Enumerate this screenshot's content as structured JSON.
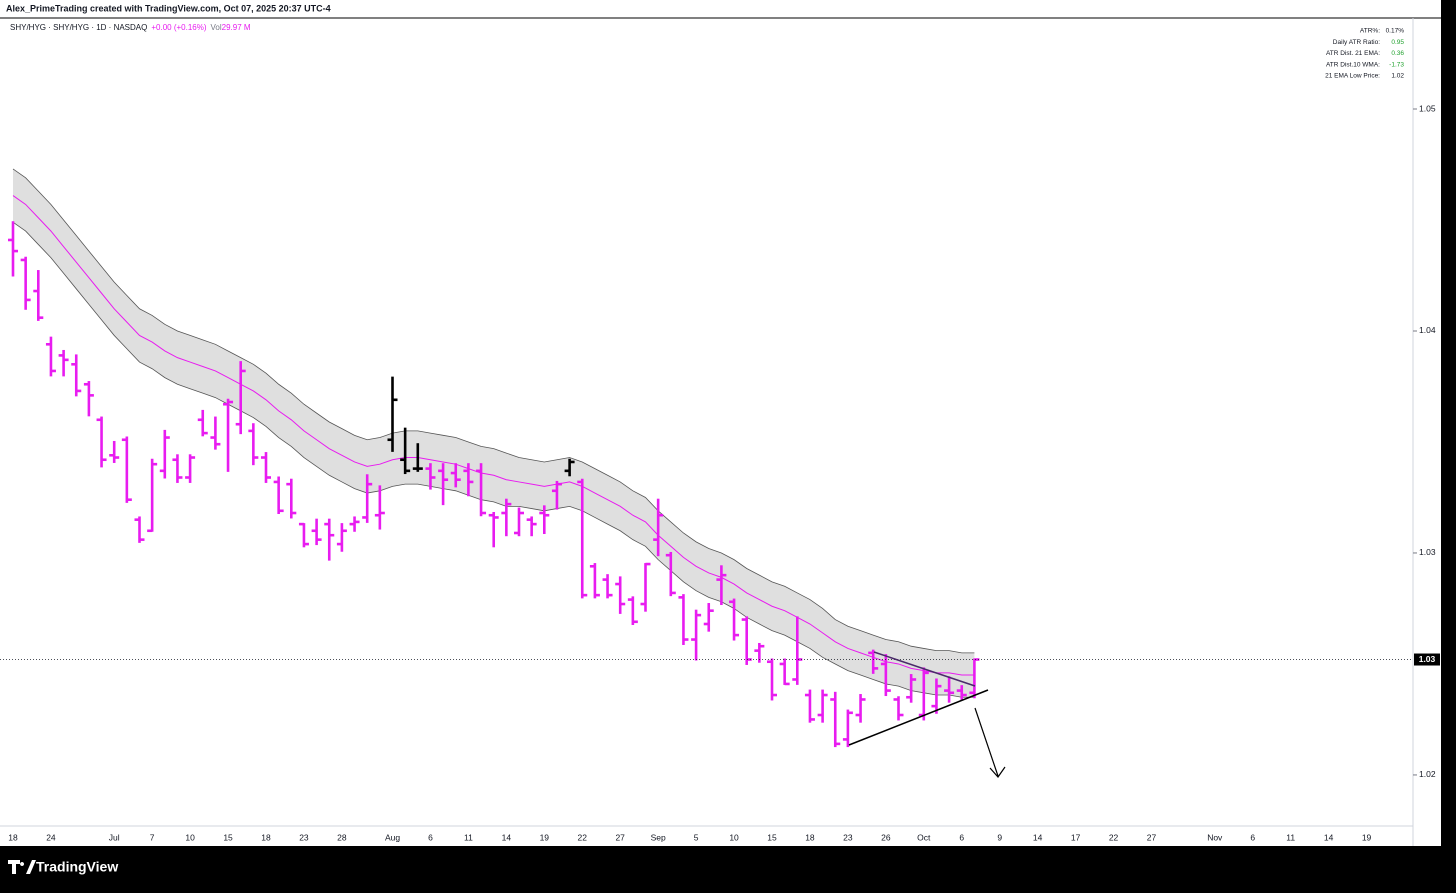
{
  "caption": "Alex_PrimeTrading created with TradingView.com, Oct 07, 2025 20:37 UTC-4",
  "legend": {
    "symbol": "SHY/HYG · SHY/HYG · 1D · NASDAQ",
    "change": "+0.00 (+0.16%)",
    "vol_label": "Vol",
    "vol_value": "29.97 M"
  },
  "stats_table": {
    "rows": [
      {
        "label": "ATR%:",
        "value": "0.17%",
        "color": "#131722"
      },
      {
        "label": "Daily ATR Ratio:",
        "value": "0.95",
        "color": "#22a12f"
      },
      {
        "label": "ATR Dist. 21 EMA:",
        "value": "0.36",
        "color": "#22a12f"
      },
      {
        "label": "ATR Dist.10 WMA:",
        "value": "-1.73",
        "color": "#22a12f"
      },
      {
        "label": "21 EMA Low Price:",
        "value": "1.02",
        "color": "#131722"
      }
    ]
  },
  "footer": {
    "brand": "TradingView"
  },
  "chart_data": {
    "type": "ohlc",
    "categories": [
      "18",
      null,
      null,
      "24",
      null,
      null,
      null,
      null,
      "Jul",
      null,
      null,
      "7",
      null,
      null,
      "10",
      null,
      null,
      "15",
      null,
      null,
      "18",
      null,
      null,
      "23",
      null,
      null,
      "28",
      null,
      null,
      null,
      "Aug",
      null,
      null,
      "6",
      null,
      null,
      "11",
      null,
      null,
      "14",
      null,
      null,
      "19",
      null,
      null,
      "22",
      null,
      null,
      "27",
      null,
      null,
      "Sep",
      null,
      null,
      "5",
      null,
      null,
      "10",
      null,
      null,
      "15",
      null,
      null,
      "18",
      null,
      null,
      "23",
      null,
      null,
      "26",
      null,
      null,
      "Oct",
      null,
      null,
      "6",
      null,
      null,
      "9",
      null,
      null,
      "14",
      null,
      null,
      "17",
      null,
      null,
      "22",
      null,
      null,
      "27",
      null,
      null,
      null,
      null,
      "Nov",
      null,
      null,
      "6",
      null,
      null,
      "11",
      null,
      null,
      "14",
      null,
      null,
      "19"
    ],
    "open": [
      1.0441,
      1.0432,
      1.0418,
      1.0394,
      1.0389,
      1.0385,
      1.0376,
      1.036,
      1.0344,
      1.0351,
      1.0315,
      1.031,
      1.0337,
      1.0342,
      1.0334,
      1.036,
      1.0352,
      1.0367,
      1.0358,
      1.0355,
      1.0343,
      1.0332,
      1.0331,
      1.0313,
      1.031,
      1.0313,
      1.0304,
      1.0313,
      1.0316,
      1.0317,
      1.0351,
      1.0342,
      1.0338,
      1.0338,
      1.0337,
      1.0336,
      1.0337,
      1.0337,
      1.0317,
      1.0318,
      1.0309,
      1.0315,
      1.0318,
      1.0328,
      1.0337,
      1.0332,
      1.0294,
      1.0288,
      1.0286,
      1.0279,
      1.0277,
      1.0306,
      1.0299,
      1.028,
      1.0261,
      1.0268,
      1.0288,
      1.0278,
      1.027,
      1.0256,
      1.0251,
      1.025,
      1.0243,
      1.0236,
      1.0227,
      1.0234,
      1.0216,
      1.0227,
      1.0255,
      1.025,
      1.0234,
      1.0235,
      1.0227,
      1.0231,
      1.0238,
      1.0238,
      1.0237,
      null,
      null,
      null,
      null,
      null,
      null,
      null,
      null,
      null,
      null,
      null,
      null,
      null,
      null,
      null,
      null,
      null,
      null,
      null,
      null,
      null,
      null,
      null,
      null,
      null,
      null,
      null,
      null,
      null,
      null,
      null
    ],
    "high": [
      1.0449,
      1.0433,
      1.0427,
      1.0397,
      1.0391,
      1.0389,
      1.0377,
      1.0361,
      1.035,
      1.0352,
      1.0316,
      1.0342,
      1.0355,
      1.0344,
      1.0344,
      1.0364,
      1.0361,
      1.0369,
      1.0386,
      1.0358,
      1.0345,
      1.0334,
      1.0333,
      1.0313,
      1.0315,
      1.0315,
      1.0313,
      1.0316,
      1.0335,
      1.033,
      1.0379,
      1.0356,
      1.0349,
      1.034,
      1.034,
      1.034,
      1.034,
      1.034,
      1.0318,
      1.0324,
      1.032,
      1.0316,
      1.0321,
      1.0332,
      1.0342,
      1.0333,
      1.0295,
      1.029,
      1.0289,
      1.028,
      1.0295,
      1.0324,
      1.03,
      1.0281,
      1.0274,
      1.0277,
      1.0294,
      1.0279,
      1.0271,
      1.0259,
      1.0252,
      1.0252,
      1.0271,
      1.0238,
      1.0238,
      1.0237,
      1.0229,
      1.0236,
      1.0256,
      1.0254,
      1.0235,
      1.0245,
      1.0248,
      1.0243,
      1.0244,
      1.024,
      1.0252,
      null,
      null,
      null,
      null,
      null,
      null,
      null,
      null,
      null,
      null,
      null,
      null,
      null,
      null,
      null,
      null,
      null,
      null,
      null,
      null,
      null,
      null,
      null,
      null,
      null,
      null,
      null,
      null,
      null,
      null,
      null
    ],
    "low": [
      1.0425,
      1.041,
      1.0405,
      1.038,
      1.038,
      1.0371,
      1.0362,
      1.0339,
      1.0341,
      1.0323,
      1.0305,
      1.031,
      1.0334,
      1.0332,
      1.0332,
      1.0353,
      1.0347,
      1.0337,
      1.0354,
      1.034,
      1.0332,
      1.0318,
      1.0316,
      1.0303,
      1.0304,
      1.0297,
      1.0301,
      1.031,
      1.0314,
      1.0311,
      1.0346,
      1.0336,
      1.0337,
      1.0329,
      1.0322,
      1.033,
      1.0326,
      1.0317,
      1.0303,
      1.0308,
      1.0308,
      1.0308,
      1.0309,
      1.032,
      1.0335,
      1.028,
      1.028,
      1.028,
      1.0273,
      1.0268,
      1.0274,
      1.0299,
      1.0281,
      1.0259,
      1.0252,
      1.0265,
      1.0277,
      1.0261,
      1.025,
      1.0251,
      1.0234,
      1.0241,
      1.0241,
      1.0224,
      1.0224,
      1.0213,
      1.0213,
      1.0224,
      1.0246,
      1.0236,
      1.0225,
      1.0233,
      1.0225,
      1.0228,
      1.0233,
      1.0234,
      1.0235,
      null,
      null,
      null,
      null,
      null,
      null,
      null,
      null,
      null,
      null,
      null,
      null,
      null,
      null,
      null,
      null,
      null,
      null,
      null,
      null,
      null,
      null,
      null,
      null,
      null,
      null,
      null,
      null,
      null,
      null,
      null
    ],
    "close": [
      1.0436,
      1.0414,
      1.0406,
      1.0382,
      1.0387,
      1.0373,
      1.0371,
      1.0342,
      1.0343,
      1.0324,
      1.0306,
      1.034,
      1.0352,
      1.0334,
      1.0343,
      1.0354,
      1.0349,
      1.0368,
      1.0382,
      1.0343,
      1.0334,
      1.0319,
      1.0318,
      1.0304,
      1.0306,
      1.0308,
      1.031,
      1.0314,
      1.0331,
      1.0318,
      1.0369,
      1.0337,
      1.0338,
      1.0334,
      1.0333,
      1.0333,
      1.0332,
      1.0318,
      1.0316,
      1.0322,
      1.0318,
      1.0313,
      1.0317,
      1.0331,
      1.0341,
      1.0281,
      1.0281,
      1.0281,
      1.0277,
      1.0269,
      1.0295,
      1.0317,
      1.0282,
      1.0261,
      1.0272,
      1.0274,
      1.029,
      1.0263,
      1.0252,
      1.0258,
      1.0236,
      1.0241,
      1.0252,
      1.0225,
      1.0236,
      1.0214,
      1.0228,
      1.0234,
      1.0248,
      1.0238,
      1.0227,
      1.0243,
      1.0246,
      1.024,
      1.0237,
      1.0236,
      1.0252,
      null,
      null,
      null,
      null,
      null,
      null,
      null,
      null,
      null,
      null,
      null,
      null,
      null,
      null,
      null,
      null,
      null,
      null,
      null,
      null,
      null,
      null,
      null,
      null,
      null,
      null,
      null,
      null,
      null,
      null,
      null
    ],
    "bar_colors": [
      "#e81cf0",
      "#e81cf0",
      "#e81cf0",
      "#e81cf0",
      "#e81cf0",
      "#e81cf0",
      "#e81cf0",
      "#e81cf0",
      "#e81cf0",
      "#e81cf0",
      "#e81cf0",
      "#e81cf0",
      "#e81cf0",
      "#e81cf0",
      "#e81cf0",
      "#e81cf0",
      "#e81cf0",
      "#e81cf0",
      "#e81cf0",
      "#e81cf0",
      "#e81cf0",
      "#e81cf0",
      "#e81cf0",
      "#e81cf0",
      "#e81cf0",
      "#e81cf0",
      "#e81cf0",
      "#e81cf0",
      "#e81cf0",
      "#e81cf0",
      "#000000",
      "#000000",
      "#000000",
      "#e81cf0",
      "#e81cf0",
      "#e81cf0",
      "#e81cf0",
      "#e81cf0",
      "#e81cf0",
      "#e81cf0",
      "#e81cf0",
      "#e81cf0",
      "#e81cf0",
      "#e81cf0",
      "#000000",
      "#e81cf0",
      "#e81cf0",
      "#e81cf0",
      "#e81cf0",
      "#e81cf0",
      "#e81cf0",
      "#e81cf0",
      "#e81cf0",
      "#e81cf0",
      "#e81cf0",
      "#e81cf0",
      "#e81cf0",
      "#e81cf0",
      "#e81cf0",
      "#e81cf0",
      "#e81cf0",
      "#e81cf0",
      "#e81cf0",
      "#e81cf0",
      "#e81cf0",
      "#e81cf0",
      "#e81cf0",
      "#e81cf0",
      "#e81cf0",
      "#e81cf0",
      "#e81cf0",
      "#e81cf0",
      "#e81cf0",
      "#e81cf0",
      "#e81cf0",
      "#e81cf0",
      "#e81cf0",
      null,
      null,
      null,
      null,
      null,
      null,
      null,
      null,
      null,
      null,
      null,
      null,
      null,
      null,
      null,
      null,
      null,
      null,
      null,
      null,
      null,
      null,
      null,
      null,
      null,
      null,
      null,
      null,
      null,
      null,
      null
    ],
    "ema": [
      1.0461,
      1.0457,
      1.0451,
      1.0445,
      1.0438,
      1.0431,
      1.0424,
      1.0417,
      1.041,
      1.0404,
      1.0398,
      1.0395,
      1.0391,
      1.0388,
      1.0386,
      1.0384,
      1.0382,
      1.0379,
      1.0376,
      1.0373,
      1.0369,
      1.0364,
      1.036,
      1.0355,
      1.0351,
      1.0347,
      1.0344,
      1.0341,
      1.0339,
      1.034,
      1.0342,
      1.0343,
      1.0343,
      1.0342,
      1.0341,
      1.034,
      1.0338,
      1.0336,
      1.0335,
      1.0333,
      1.0332,
      1.0331,
      1.033,
      1.0331,
      1.0332,
      1.033,
      1.0327,
      1.0324,
      1.0321,
      1.0317,
      1.0314,
      1.0308,
      1.0303,
      1.0298,
      1.0294,
      1.0291,
      1.0289,
      1.0286,
      1.0282,
      1.0279,
      1.0276,
      1.0274,
      1.0271,
      1.0268,
      1.0264,
      1.026,
      1.0257,
      1.0255,
      1.0253,
      1.0251,
      1.025,
      1.0248,
      1.0247,
      1.0246,
      1.0246,
      1.0245,
      1.0245,
      null,
      null,
      null,
      null,
      null,
      null,
      null,
      null,
      null,
      null,
      null,
      null,
      null,
      null,
      null,
      null,
      null,
      null,
      null,
      null,
      null,
      null,
      null,
      null,
      null,
      null,
      null,
      null,
      null,
      null,
      null
    ],
    "band_upper": [
      1.0473,
      1.0469,
      1.0463,
      1.0457,
      1.045,
      1.0443,
      1.0436,
      1.0429,
      1.0422,
      1.0416,
      1.041,
      1.0407,
      1.0403,
      1.04,
      1.0398,
      1.0396,
      1.0394,
      1.0391,
      1.0388,
      1.0385,
      1.0381,
      1.0376,
      1.0372,
      1.0367,
      1.0363,
      1.0359,
      1.0356,
      1.0353,
      1.0351,
      1.0352,
      1.0354,
      1.0355,
      1.0355,
      1.0354,
      1.0353,
      1.0352,
      1.035,
      1.0348,
      1.0347,
      1.0345,
      1.0343,
      1.0342,
      1.0341,
      1.0342,
      1.0343,
      1.0341,
      1.0338,
      1.0335,
      1.0332,
      1.0328,
      1.0325,
      1.0319,
      1.0314,
      1.0309,
      1.0305,
      1.0302,
      1.03,
      1.0297,
      1.0293,
      1.029,
      1.0287,
      1.0285,
      1.0282,
      1.0279,
      1.0275,
      1.027,
      1.0267,
      1.0265,
      1.0263,
      1.0261,
      1.026,
      1.0258,
      1.0257,
      1.0256,
      1.0256,
      1.0255,
      1.0255,
      null,
      null,
      null,
      null,
      null,
      null,
      null,
      null,
      null,
      null,
      null,
      null,
      null,
      null,
      null,
      null,
      null,
      null,
      null,
      null,
      null,
      null,
      null,
      null,
      null,
      null,
      null,
      null,
      null,
      null,
      null
    ],
    "band_lower": [
      1.0449,
      1.0445,
      1.0439,
      1.0433,
      1.0426,
      1.0419,
      1.0412,
      1.0405,
      1.0398,
      1.0392,
      1.0386,
      1.0383,
      1.0379,
      1.0376,
      1.0374,
      1.0372,
      1.037,
      1.0367,
      1.0364,
      1.0361,
      1.0357,
      1.0352,
      1.0348,
      1.0343,
      1.0339,
      1.0335,
      1.0332,
      1.0329,
      1.0327,
      1.0328,
      1.033,
      1.0331,
      1.0331,
      1.033,
      1.0329,
      1.0328,
      1.0326,
      1.0324,
      1.0323,
      1.0321,
      1.0321,
      1.032,
      1.0319,
      1.032,
      1.0321,
      1.0319,
      1.0316,
      1.0313,
      1.031,
      1.0306,
      1.0303,
      1.0297,
      1.0292,
      1.0287,
      1.0283,
      1.028,
      1.0278,
      1.0275,
      1.0271,
      1.0268,
      1.0265,
      1.0263,
      1.026,
      1.0257,
      1.0253,
      1.025,
      1.0247,
      1.0245,
      1.0243,
      1.0241,
      1.024,
      1.0238,
      1.0237,
      1.0236,
      1.0236,
      1.0235,
      1.0235,
      null,
      null,
      null,
      null,
      null,
      null,
      null,
      null,
      null,
      null,
      null,
      null,
      null,
      null,
      null,
      null,
      null,
      null,
      null,
      null,
      null,
      null,
      null,
      null,
      null,
      null,
      null,
      null,
      null,
      null,
      null
    ],
    "ema_color": "#e81cf0",
    "band_color": "#d9d9d9",
    "last_price": {
      "value": 1.0252,
      "label": "1.03"
    },
    "ylim": [
      1.0177,
      1.0541
    ],
    "yticks": [
      1.02,
      1.03,
      1.04,
      1.05
    ],
    "grid": false
  }
}
